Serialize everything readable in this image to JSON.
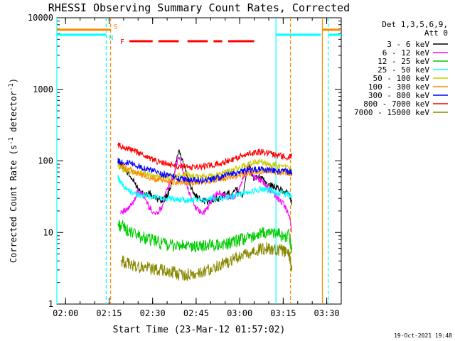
{
  "chart_data": {
    "type": "line",
    "title": "RHESSI Observing Summary Count Rates, Corrected",
    "xlabel": "Start Time (23-Mar-12 01:57:02)",
    "ylabel_parts": {
      "prefix": "Corrected Count Rate (s",
      "sup1": "-1",
      "mid": " detector",
      "sup2": "-1",
      "suffix": ")"
    },
    "yscale": "log",
    "ylim": [
      1,
      10000
    ],
    "xlim_minutes": [
      0,
      98
    ],
    "x_ticks": [
      "02:00",
      "02:15",
      "02:30",
      "02:45",
      "03:00",
      "03:15",
      "03:30"
    ],
    "x_tick_minutes": [
      3,
      18,
      33,
      48,
      63,
      78,
      93
    ],
    "y_ticks": [
      "1",
      "10",
      "100",
      "1000",
      "10000"
    ],
    "y_tick_values": [
      1,
      10,
      100,
      1000,
      10000
    ],
    "legend_header": [
      "Det 1,3,5,6,9,",
      "Att 0"
    ],
    "series": [
      {
        "name": "3 - 6 keV",
        "color": "#000000",
        "x": [
          21,
          23,
          26,
          28,
          30,
          32,
          34,
          36,
          38,
          40,
          42,
          44,
          46,
          48,
          50,
          52,
          54,
          56,
          58,
          60,
          62,
          64,
          66,
          68,
          70,
          72,
          74,
          76,
          78,
          80,
          81
        ],
        "y": [
          100,
          80,
          55,
          42,
          34,
          35,
          30,
          28,
          32,
          55,
          150,
          80,
          45,
          32,
          28,
          27,
          29,
          30,
          35,
          36,
          40,
          33,
          90,
          55,
          60,
          50,
          45,
          42,
          38,
          35,
          25
        ]
      },
      {
        "name": "6 - 12 keV",
        "color": "#ff00ff",
        "x": [
          22,
          24,
          26,
          28,
          30,
          32,
          34,
          36,
          38,
          40,
          42,
          44,
          46,
          48,
          50,
          52,
          54,
          56,
          58,
          60,
          62,
          64,
          66,
          68,
          70,
          72,
          74,
          76,
          78,
          80,
          81
        ],
        "y": [
          20,
          20,
          25,
          38,
          32,
          22,
          18,
          22,
          40,
          60,
          115,
          60,
          32,
          22,
          18,
          22,
          32,
          36,
          32,
          30,
          35,
          55,
          88,
          60,
          55,
          45,
          38,
          30,
          25,
          18,
          10
        ]
      },
      {
        "name": "12 - 25 keV",
        "color": "#00cc00",
        "x": [
          21,
          23,
          25,
          28,
          30,
          32,
          34,
          36,
          38,
          40,
          42,
          44,
          46,
          48,
          50,
          52,
          54,
          56,
          58,
          60,
          62,
          64,
          66,
          68,
          70,
          72,
          74,
          76,
          78,
          80,
          81
        ],
        "y": [
          13,
          12,
          10,
          9,
          8.5,
          8,
          7.5,
          7,
          6.8,
          6.6,
          6.5,
          6.4,
          6.3,
          6.3,
          6.5,
          6.6,
          6.7,
          6.8,
          7,
          7.2,
          7.5,
          8,
          8.5,
          9,
          9.5,
          9.8,
          10,
          9.5,
          9,
          9,
          6
        ]
      },
      {
        "name": "25 - 50 keV",
        "color": "#00ffff",
        "x": [
          21,
          22,
          24,
          26,
          28,
          30,
          32,
          34,
          36,
          38,
          40,
          42,
          44,
          46,
          48,
          50,
          52,
          54,
          56,
          58,
          60,
          62,
          64,
          66,
          68,
          70,
          72,
          74,
          76,
          78,
          80,
          81
        ],
        "y": [
          60,
          50,
          40,
          36,
          34,
          33,
          32,
          31,
          30,
          30,
          29,
          29,
          28,
          28,
          28,
          29,
          29,
          30,
          30,
          31,
          32,
          33,
          35,
          36,
          38,
          40,
          40,
          38,
          36,
          35,
          34,
          30
        ]
      },
      {
        "name": "50 - 100 keV",
        "color": "#cccc00",
        "x": [
          21,
          22,
          24,
          26,
          28,
          30,
          32,
          34,
          36,
          38,
          40,
          42,
          44,
          46,
          48,
          50,
          52,
          54,
          56,
          58,
          60,
          62,
          64,
          66,
          68,
          70,
          72,
          74,
          76,
          78,
          80,
          81
        ],
        "y": [
          85,
          80,
          75,
          70,
          68,
          66,
          64,
          62,
          60,
          60,
          60,
          62,
          64,
          63,
          62,
          60,
          60,
          62,
          65,
          68,
          72,
          78,
          85,
          90,
          95,
          98,
          92,
          88,
          85,
          82,
          78,
          70
        ]
      },
      {
        "name": "100 - 300 keV",
        "color": "#ff8800",
        "x": [
          21,
          22,
          24,
          26,
          28,
          30,
          32,
          34,
          36,
          38,
          40,
          42,
          44,
          46,
          48,
          50,
          52,
          54,
          56,
          58,
          60,
          62,
          64,
          66,
          68,
          70,
          72,
          74,
          76,
          78,
          80,
          81
        ],
        "y": [
          95,
          90,
          80,
          72,
          66,
          62,
          58,
          56,
          54,
          52,
          51,
          50,
          50,
          50,
          50,
          51,
          52,
          54,
          56,
          58,
          60,
          62,
          65,
          68,
          70,
          72,
          72,
          72,
          70,
          70,
          68,
          65
        ]
      },
      {
        "name": "300 - 800 keV",
        "color": "#0000ff",
        "x": [
          21,
          22,
          24,
          26,
          28,
          30,
          32,
          34,
          36,
          38,
          40,
          42,
          44,
          46,
          48,
          50,
          52,
          54,
          56,
          58,
          60,
          62,
          64,
          66,
          68,
          70,
          72,
          74,
          76,
          78,
          80,
          81
        ],
        "y": [
          100,
          98,
          95,
          90,
          85,
          80,
          75,
          70,
          66,
          63,
          60,
          57,
          55,
          54,
          54,
          54,
          55,
          56,
          58,
          62,
          65,
          68,
          72,
          75,
          76,
          76,
          75,
          74,
          72,
          72,
          70,
          68
        ]
      },
      {
        "name": "800 - 7000 keV",
        "color": "#ff0000",
        "x": [
          21,
          22,
          24,
          26,
          28,
          30,
          32,
          34,
          36,
          38,
          40,
          42,
          44,
          46,
          48,
          50,
          52,
          54,
          56,
          58,
          60,
          62,
          64,
          66,
          68,
          70,
          72,
          74,
          76,
          78,
          80,
          81
        ],
        "y": [
          170,
          160,
          150,
          140,
          130,
          120,
          110,
          100,
          95,
          90,
          88,
          85,
          83,
          82,
          82,
          83,
          85,
          88,
          92,
          97,
          103,
          110,
          118,
          125,
          130,
          135,
          130,
          125,
          120,
          115,
          110,
          120
        ]
      },
      {
        "name": "7000 - 15000 keV",
        "color": "#888800",
        "x": [
          22,
          24,
          26,
          28,
          30,
          32,
          34,
          36,
          38,
          40,
          42,
          44,
          46,
          48,
          50,
          52,
          54,
          56,
          58,
          60,
          62,
          64,
          66,
          68,
          70,
          72,
          74,
          76,
          78,
          80,
          81
        ],
        "y": [
          4,
          3.8,
          3.5,
          3.3,
          3.2,
          3.2,
          3,
          3,
          2.8,
          2.8,
          2.6,
          2.6,
          2.6,
          2.6,
          2.8,
          3,
          3.2,
          3.5,
          3.8,
          4,
          4.3,
          4.6,
          5,
          5.5,
          5.8,
          6,
          6,
          5.8,
          5.6,
          5,
          3
        ]
      }
    ],
    "status_bars": [
      {
        "label": "S",
        "color": "#ff8800",
        "segments": [
          [
            0,
            18.5
          ],
          [
            91.5,
            98
          ]
        ],
        "level": 6800
      },
      {
        "label": "N",
        "color": "#00ffff",
        "segments": [
          [
            0,
            17
          ],
          [
            75.5,
            91
          ],
          [
            93.5,
            98
          ]
        ],
        "level": 5800
      },
      {
        "label": "F",
        "color": "#ff0000",
        "segments": [
          [
            25,
            33
          ],
          [
            35,
            42
          ],
          [
            45,
            52
          ],
          [
            54,
            57
          ],
          [
            59,
            68
          ]
        ],
        "level": 4700
      }
    ],
    "vertical_markers": [
      {
        "x": 0,
        "color": "#00ffff",
        "style": "solid"
      },
      {
        "x": 17,
        "color": "#00ffff",
        "style": "dashed"
      },
      {
        "x": 18.5,
        "color": "#ff8800",
        "style": "dashed"
      },
      {
        "x": 75.5,
        "color": "#00ffff",
        "style": "solid"
      },
      {
        "x": 80.5,
        "color": "#ff8800",
        "style": "dashed"
      },
      {
        "x": 91.5,
        "color": "#ff8800",
        "style": "solid"
      },
      {
        "x": 93.5,
        "color": "#00ffff",
        "style": "dashed"
      }
    ]
  },
  "footer": {
    "timestamp": "19-Oct-2021 19:48"
  }
}
